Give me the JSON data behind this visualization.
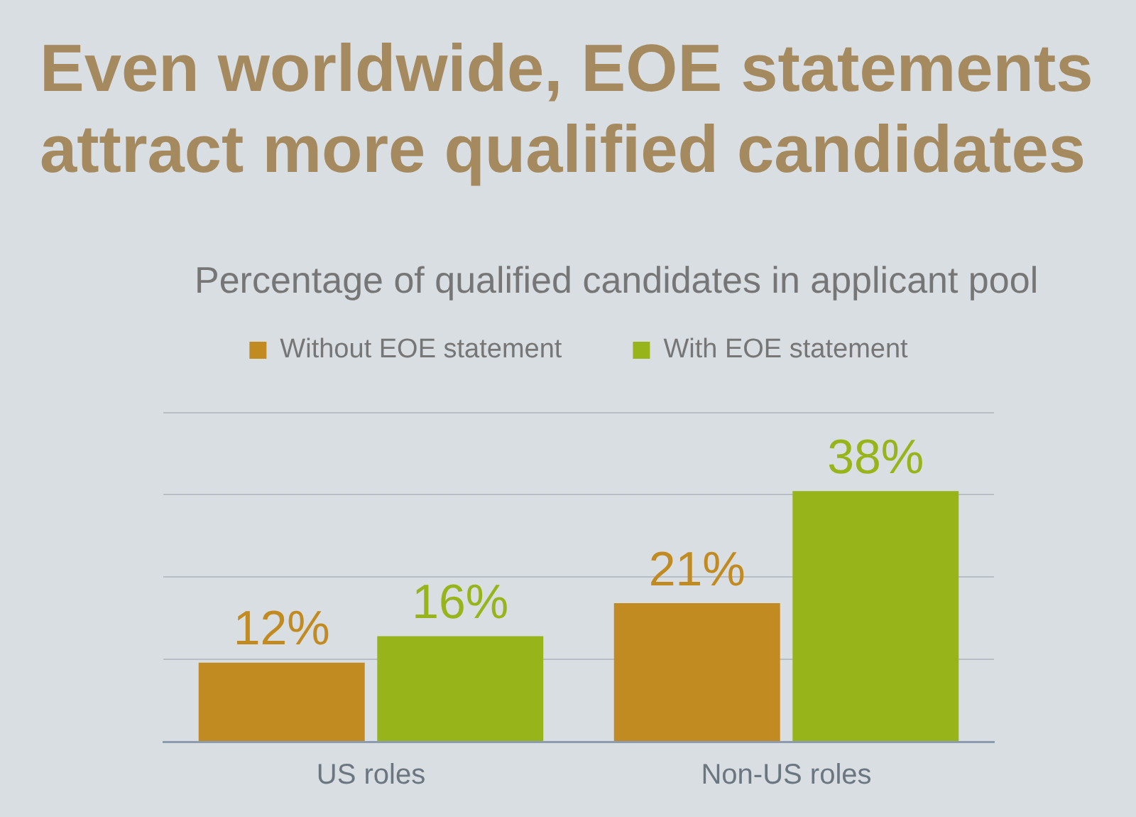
{
  "chart_data": {
    "type": "bar",
    "title": "Even worldwide, EOE statements attract more qualified candidates",
    "subtitle": "Percentage of qualified candidates in applicant pool",
    "categories": [
      "US roles",
      "Non-US roles"
    ],
    "series": [
      {
        "name": "Without EOE statement",
        "color": "#c28b22",
        "values": [
          12,
          21
        ],
        "value_labels": [
          "12%",
          "21%"
        ]
      },
      {
        "name": "With EOE statement",
        "color": "#97b41a",
        "values": [
          16,
          38
        ],
        "value_labels": [
          "16%",
          "38%"
        ]
      }
    ],
    "ylim": [
      0,
      50
    ],
    "yticks": [
      {
        "value": 0,
        "label": null
      },
      {
        "value": 12.5,
        "label": null
      },
      {
        "value": 25,
        "label": null
      },
      {
        "value": 37.5,
        "label": null
      }
    ],
    "grid": "y",
    "legend": "top",
    "tick_labels": "x"
  }
}
